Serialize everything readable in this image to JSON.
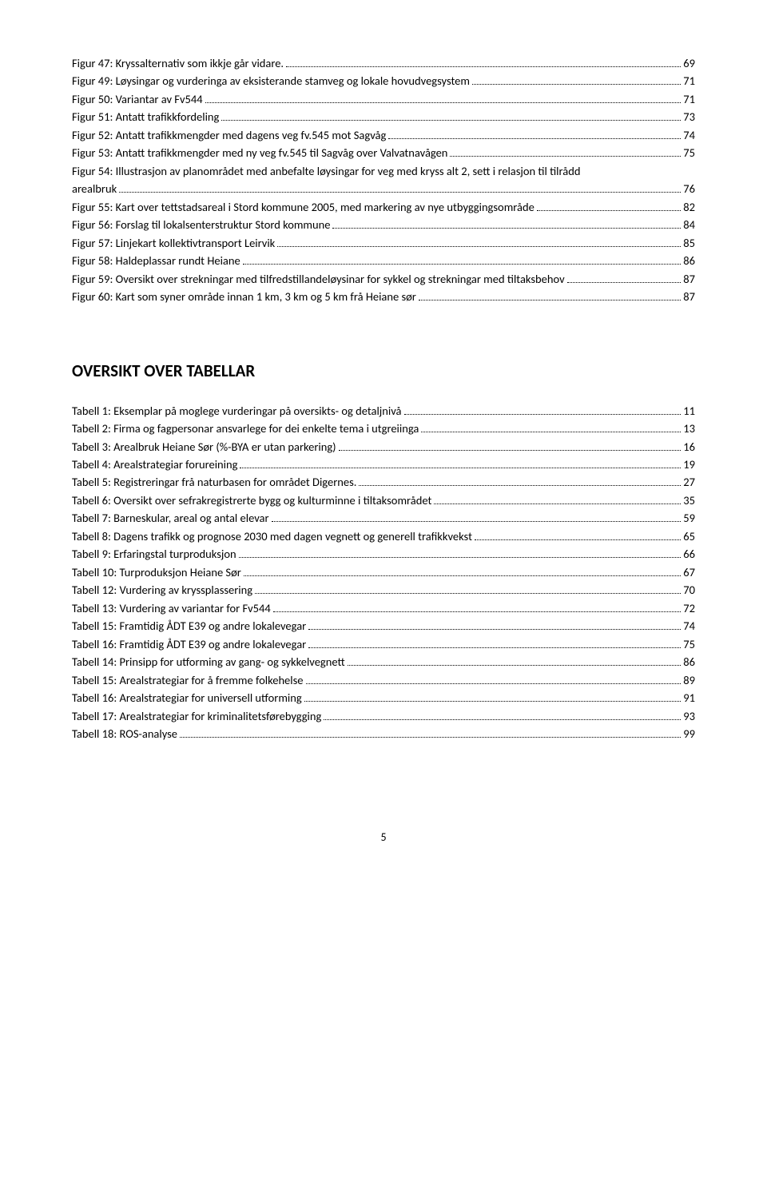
{
  "figures": [
    {
      "label": "Figur 47: Kryssalternativ som ikkje går vidare.",
      "page": "69"
    },
    {
      "label": "Figur 49: Løysingar og vurderinga av eksisterande stamveg og lokale hovudvegsystem",
      "page": "71"
    },
    {
      "label": "Figur 50: Variantar av Fv544",
      "page": "71"
    },
    {
      "label": "Figur 51: Antatt trafikkfordeling",
      "page": "73"
    },
    {
      "label": "Figur 52: Antatt trafikkmengder med dagens veg fv.545 mot Sagvåg",
      "page": "74"
    },
    {
      "label": "Figur 53: Antatt trafikkmengder med ny veg fv.545 til Sagvåg over Valvatnavågen",
      "page": "75"
    },
    {
      "label_line1": "Figur 54: Illustrasjon av planområdet med anbefalte løysingar for veg med  kryss alt 2, sett i relasjon  til tilrådd",
      "label_line2": "arealbruk",
      "page": "76",
      "multiline": true
    },
    {
      "label": "Figur 55: Kart over tettstadsareal i Stord kommune 2005, med markering av  nye utbyggingsområde",
      "page": "82"
    },
    {
      "label": "Figur 56: Forslag til lokalsenterstruktur Stord kommune",
      "page": "84"
    },
    {
      "label": "Figur 57: Linjekart kollektivtransport Leirvik",
      "page": "85"
    },
    {
      "label": "Figur 58: Haldeplassar rundt Heiane",
      "page": "86"
    },
    {
      "label": "Figur 59: Oversikt over strekningar med tilfredstillandeløysinar for sykkel og strekningar med tiltaksbehov",
      "page": "87"
    },
    {
      "label": "Figur 60: Kart som syner område innan 1 km, 3 km og 5 km frå Heiane sør",
      "page": "87"
    }
  ],
  "tables_heading": "OVERSIKT OVER TABELLAR",
  "tables": [
    {
      "label": "Tabell 1: Eksemplar på moglege vurderingar på oversikts- og detaljnivå",
      "page": "11"
    },
    {
      "label": "Tabell 2: Firma og fagpersonar ansvarlege for dei enkelte tema i utgreiinga",
      "page": "13"
    },
    {
      "label": "Tabell 3: Arealbruk Heiane Sør (%-BYA er utan parkering)",
      "page": "16"
    },
    {
      "label": "Tabell 4: Arealstrategiar forureining",
      "page": "19"
    },
    {
      "label": "Tabell 5: Registreringar frå naturbasen for området Digernes.",
      "page": "27"
    },
    {
      "label": "Tabell 6: Oversikt over sefrakregistrerte bygg og kulturminne i tiltaksområdet",
      "page": "35"
    },
    {
      "label": "Tabell 7: Barneskular, areal og antal elevar",
      "page": "59"
    },
    {
      "label": "Tabell 8: Dagens trafikk og prognose 2030 med dagen vegnett og generell trafikkvekst",
      "page": "65"
    },
    {
      "label": "Tabell 9: Erfaringstal turproduksjon",
      "page": "66"
    },
    {
      "label": "Tabell 10: Turproduksjon Heiane Sør",
      "page": "67"
    },
    {
      "label": "Tabell 12: Vurdering av kryssplassering",
      "page": "70"
    },
    {
      "label": "Tabell 13: Vurdering av variantar for Fv544",
      "page": "72"
    },
    {
      "label": "Tabell 15: Framtidig ÅDT E39 og andre lokalevegar",
      "page": "74"
    },
    {
      "label": "Tabell 16: Framtidig ÅDT E39 og andre lokalevegar",
      "page": "75"
    },
    {
      "label": "Tabell 14: Prinsipp for utforming av gang- og sykkelvegnett",
      "page": "86"
    },
    {
      "label": "Tabell 15: Arealstrategiar for å fremme folkehelse",
      "page": "89"
    },
    {
      "label": "Tabell 16: Arealstrategiar for universell utforming",
      "page": "91"
    },
    {
      "label": "Tabell 17: Arealstrategiar for kriminalitetsførebygging",
      "page": "93"
    },
    {
      "label": "Tabell 18: ROS-analyse",
      "page": "99"
    }
  ],
  "page_number": "5"
}
